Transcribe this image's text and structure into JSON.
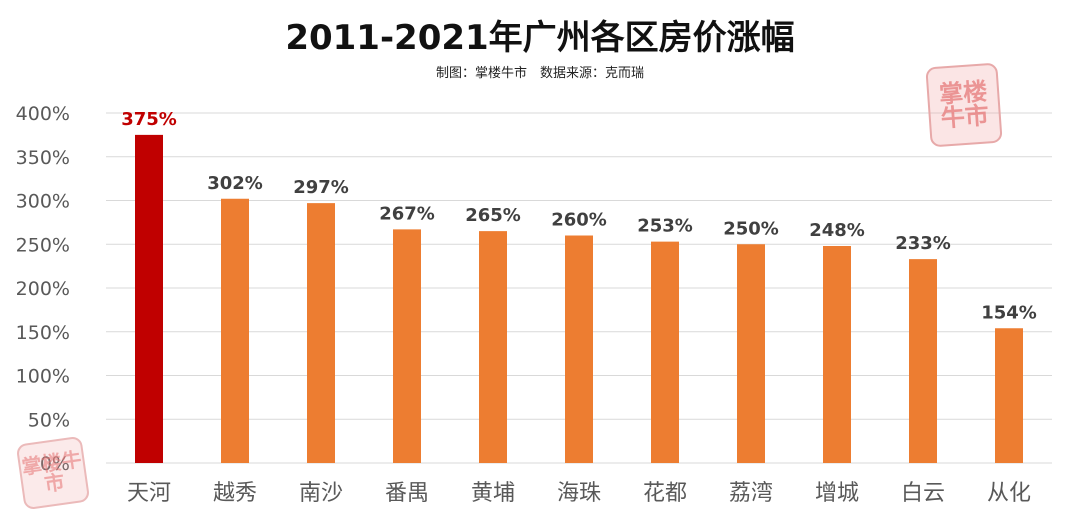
{
  "page": {
    "title": "2011-2021年广州各区房价涨幅",
    "subtitle": "制图：掌楼牛市　数据来源：克而瑞",
    "watermark_text": "掌楼牛市"
  },
  "colors": {
    "highlight": "#C00000",
    "bar": "#ED7D31",
    "grid": "#D9D9D9",
    "axis_text": "#595959",
    "label_text": "#404040"
  },
  "chart_data": {
    "type": "bar",
    "title": "2011-2021年广州各区房价涨幅",
    "subtitle": "制图：掌楼牛市　数据来源：克而瑞",
    "categories": [
      "天河",
      "越秀",
      "南沙",
      "番禺",
      "黄埔",
      "海珠",
      "花都",
      "荔湾",
      "增城",
      "白云",
      "从化"
    ],
    "values": [
      375,
      302,
      297,
      267,
      265,
      260,
      253,
      250,
      248,
      233,
      154
    ],
    "value_labels": [
      "375%",
      "302%",
      "297%",
      "267%",
      "265%",
      "260%",
      "253%",
      "250%",
      "248%",
      "233%",
      "154%"
    ],
    "highlight_index": 0,
    "yticks": [
      0,
      50,
      100,
      150,
      200,
      250,
      300,
      350,
      400
    ],
    "ytick_labels": [
      "0%",
      "50%",
      "100%",
      "150%",
      "200%",
      "250%",
      "300%",
      "350%",
      "400%"
    ],
    "ylim": [
      0,
      400
    ],
    "xlabel": "",
    "ylabel": "",
    "grid": true,
    "legend": "none"
  }
}
